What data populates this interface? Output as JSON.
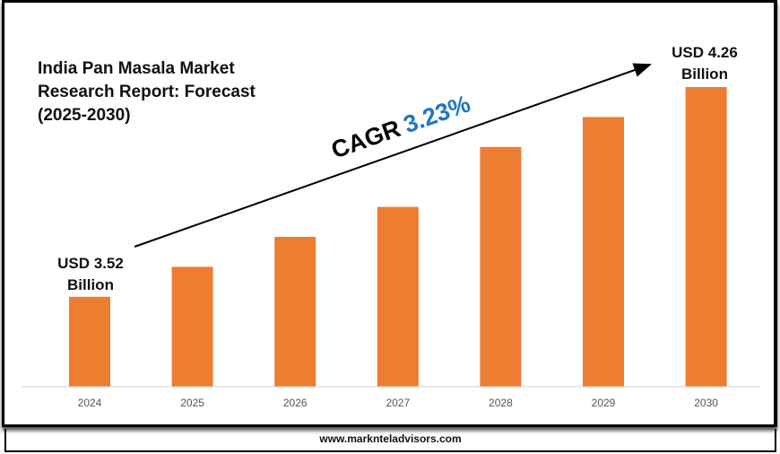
{
  "title": [
    "India Pan Masala Market",
    "Research Report: Forecast",
    "(2025-2030)"
  ],
  "footer": "www.marknteladvisors.com",
  "cagr": {
    "label": "CAGR",
    "value": "3.23%",
    "value_color": "#1f77c0"
  },
  "start_label": [
    "USD 3.52",
    "Billion"
  ],
  "end_label": [
    "USD 4.26",
    "Billion"
  ],
  "chart_data": {
    "type": "bar",
    "categories": [
      "2024",
      "2025",
      "2026",
      "2027",
      "2028",
      "2029",
      "2030"
    ],
    "relative_height_pct": [
      30,
      40,
      50,
      60,
      80,
      90,
      100
    ],
    "annotated_values": {
      "2024": "USD 3.52 Billion",
      "2030": "USD 4.26 Billion"
    },
    "bar_color": "#ed7d31",
    "grid": false,
    "legend": "none"
  }
}
